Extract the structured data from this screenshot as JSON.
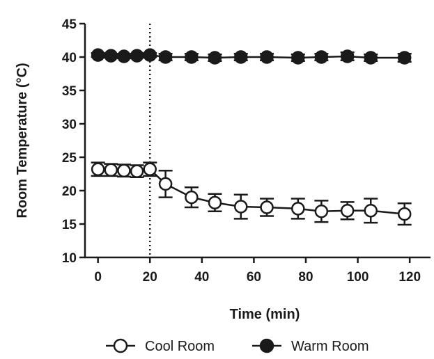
{
  "chart_data": {
    "type": "line",
    "title": "",
    "xlabel": "Time (min)",
    "ylabel": "Room Temperature (°C)",
    "xlim": [
      -5,
      128
    ],
    "ylim": [
      10,
      45
    ],
    "xticks": [
      0,
      20,
      40,
      60,
      80,
      100,
      120
    ],
    "yticks": [
      10,
      15,
      20,
      25,
      30,
      35,
      40,
      45
    ],
    "grid": false,
    "legend_position": "bottom",
    "reference_line": {
      "x": 20,
      "style": "dotted"
    },
    "series": [
      {
        "name": "Cool Room",
        "marker": "open-circle",
        "color": "#1a1a1a",
        "x": [
          0,
          5,
          10,
          15,
          20,
          26,
          36,
          45,
          55,
          65,
          77,
          86,
          96,
          105,
          118
        ],
        "y": [
          23.2,
          23.1,
          23.0,
          22.9,
          23.2,
          21.0,
          19.0,
          18.2,
          17.6,
          17.5,
          17.3,
          16.9,
          17.0,
          17.0,
          16.5
        ],
        "err": [
          1.0,
          0.9,
          0.9,
          0.9,
          1.0,
          2.0,
          1.5,
          1.3,
          1.8,
          1.3,
          1.5,
          1.6,
          1.3,
          1.8,
          1.6
        ]
      },
      {
        "name": "Warm Room",
        "marker": "filled-circle",
        "color": "#1a1a1a",
        "x": [
          0,
          5,
          10,
          15,
          20,
          26,
          36,
          45,
          55,
          65,
          77,
          86,
          96,
          105,
          118
        ],
        "y": [
          40.3,
          40.2,
          40.1,
          40.2,
          40.3,
          40.0,
          40.0,
          39.9,
          40.0,
          40.0,
          39.9,
          40.0,
          40.1,
          39.9,
          39.9
        ],
        "err": [
          0.3,
          0.3,
          0.3,
          0.3,
          0.3,
          0.5,
          0.5,
          0.5,
          0.5,
          0.5,
          0.5,
          0.5,
          0.6,
          0.5,
          0.6
        ]
      }
    ]
  }
}
